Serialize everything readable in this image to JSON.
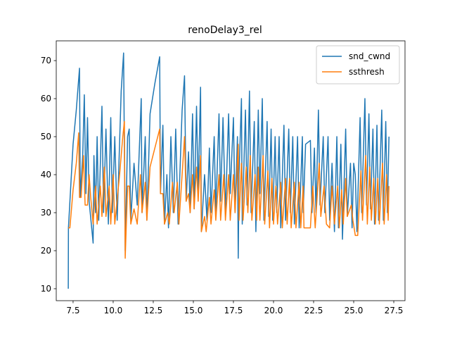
{
  "chart_data": {
    "type": "line",
    "title": "renoDelay3_rel",
    "xlim": [
      6.45,
      28.2
    ],
    "ylim": [
      6.85,
      75.2
    ],
    "xticks": [
      {
        "value": 7.5,
        "label": "7.5"
      },
      {
        "value": 10,
        "label": "10.0"
      },
      {
        "value": 12.5,
        "label": "12.5"
      },
      {
        "value": 15,
        "label": "15.0"
      },
      {
        "value": 17.5,
        "label": "17.5"
      },
      {
        "value": 20,
        "label": "20.0"
      },
      {
        "value": 22.5,
        "label": "22.5"
      },
      {
        "value": 25,
        "label": "25.0"
      },
      {
        "value": 27.5,
        "label": "27.5"
      }
    ],
    "yticks": [
      10,
      20,
      30,
      40,
      50,
      60,
      70
    ],
    "legend": "upper right",
    "series": [
      {
        "name": "snd_cwnd",
        "color": "#1f77b4",
        "x": [
          7.2,
          7.21,
          7.5,
          7.7,
          7.9,
          7.95,
          8.1,
          8.2,
          8.3,
          8.4,
          8.5,
          8.75,
          8.8,
          8.9,
          9.0,
          9.1,
          9.3,
          9.4,
          9.55,
          9.7,
          9.85,
          9.95,
          10.1,
          10.25,
          10.5,
          10.65,
          10.75,
          10.9,
          11.0,
          11.1,
          11.3,
          11.5,
          11.75,
          11.8,
          12.0,
          12.1,
          12.3,
          12.6,
          12.9,
          12.95,
          13.1,
          13.2,
          13.35,
          13.45,
          13.6,
          13.75,
          13.9,
          14.05,
          14.3,
          14.45,
          14.55,
          14.7,
          14.8,
          14.95,
          15.05,
          15.2,
          15.3,
          15.45,
          15.5,
          15.7,
          15.85,
          16.0,
          16.1,
          16.3,
          16.4,
          16.6,
          16.7,
          16.85,
          17.0,
          17.2,
          17.3,
          17.5,
          17.6,
          17.75,
          17.8,
          17.85,
          18.0,
          18.05,
          18.25,
          18.35,
          18.5,
          18.6,
          18.8,
          18.9,
          19.05,
          19.15,
          19.3,
          19.4,
          19.6,
          19.7,
          19.85,
          19.95,
          20.1,
          20.2,
          20.35,
          20.45,
          20.65,
          20.75,
          20.95,
          21.05,
          21.2,
          21.3,
          21.5,
          21.6,
          21.8,
          21.85,
          22.0,
          22.3,
          22.4,
          22.55,
          22.65,
          22.8,
          22.9,
          23.1,
          23.2,
          23.4,
          23.5,
          23.65,
          23.8,
          23.95,
          24.05,
          24.2,
          24.3,
          24.5,
          24.6,
          24.8,
          24.9,
          25.0,
          25.1,
          25.2,
          25.4,
          25.5,
          25.7,
          25.8,
          25.95,
          26.05,
          26.2,
          26.3,
          26.45,
          26.55,
          26.75,
          26.85,
          27.0,
          27.1,
          27.2
        ],
        "values": [
          10,
          26,
          48,
          57,
          68,
          34,
          45,
          61,
          35,
          55,
          33,
          22,
          45,
          30,
          50,
          28,
          58,
          30,
          52,
          27,
          55,
          30,
          50,
          28,
          62,
          72,
          20,
          50,
          52,
          28,
          43,
          32,
          60,
          30,
          50,
          28,
          56,
          64,
          71,
          35,
          53,
          27,
          40,
          26,
          50,
          30,
          52,
          27,
          57,
          66,
          33,
          46,
          30,
          56,
          31,
          58,
          35,
          63,
          25,
          40,
          28,
          47,
          30,
          50,
          30,
          56,
          33,
          55,
          30,
          56,
          35,
          55,
          30,
          50,
          18,
          40,
          60,
          27,
          57,
          32,
          62,
          30,
          54,
          25,
          57,
          35,
          60,
          28,
          54,
          29,
          52,
          28,
          50,
          30,
          50,
          26,
          53,
          28,
          52,
          30,
          50,
          27,
          50,
          26,
          50,
          30,
          48,
          49,
          30,
          47,
          30,
          57,
          32,
          50,
          30,
          50,
          28,
          43,
          25,
          50,
          26,
          48,
          23,
          52,
          29,
          43,
          26,
          43,
          40,
          25,
          55,
          30,
          60,
          32,
          56,
          31,
          52,
          27,
          53,
          28,
          57,
          28,
          54,
          30,
          50
        ]
      },
      {
        "name": "ssthresh",
        "color": "#ff7f0e",
        "x": [
          7.2,
          7.3,
          7.5,
          7.7,
          7.85,
          7.9,
          8.0,
          8.15,
          8.25,
          8.4,
          8.5,
          8.6,
          8.75,
          8.9,
          9.0,
          9.2,
          9.3,
          9.45,
          9.55,
          9.75,
          9.85,
          10.0,
          10.1,
          10.4,
          10.6,
          10.7,
          10.75,
          10.9,
          11.0,
          11.1,
          11.3,
          11.5,
          11.7,
          11.8,
          12.0,
          12.1,
          12.3,
          12.6,
          12.9,
          12.95,
          13.1,
          13.2,
          13.4,
          13.5,
          13.7,
          13.8,
          14.0,
          14.1,
          14.3,
          14.45,
          14.55,
          14.7,
          14.8,
          14.95,
          15.05,
          15.2,
          15.3,
          15.45,
          15.5,
          15.7,
          15.8,
          16.0,
          16.1,
          16.3,
          16.4,
          16.6,
          16.7,
          16.9,
          17.0,
          17.2,
          17.3,
          17.5,
          17.6,
          17.8,
          17.85,
          18.0,
          18.1,
          18.3,
          18.4,
          18.55,
          18.65,
          18.85,
          18.95,
          19.05,
          19.15,
          19.35,
          19.45,
          19.65,
          19.75,
          19.9,
          20.0,
          20.15,
          20.25,
          20.45,
          20.55,
          20.75,
          20.85,
          21.0,
          21.1,
          21.3,
          21.4,
          21.6,
          21.7,
          21.85,
          21.9,
          22.3,
          22.45,
          22.6,
          22.85,
          22.95,
          23.15,
          23.3,
          23.5,
          23.65,
          23.8,
          24.0,
          24.1,
          24.25,
          24.35,
          24.5,
          24.6,
          24.85,
          24.95,
          25.1,
          25.25,
          25.45,
          25.55,
          25.75,
          25.85,
          26.0,
          26.1,
          26.25,
          26.35,
          26.5,
          26.6,
          26.8,
          26.9,
          27.05,
          27.15,
          27.2
        ],
        "values": [
          26,
          26,
          36,
          43,
          51,
          34,
          34,
          45,
          32,
          32,
          40,
          34,
          27,
          37,
          27,
          37,
          29,
          42,
          29,
          37,
          27,
          40,
          27,
          40,
          50,
          54,
          18,
          37,
          37,
          27,
          31,
          27,
          40,
          30,
          38,
          28,
          42,
          47,
          52,
          35,
          35,
          27,
          30,
          27,
          38,
          30,
          38,
          27,
          40,
          50,
          33,
          35,
          30,
          40,
          31,
          42,
          33,
          45,
          25,
          29,
          25,
          34,
          27,
          36,
          28,
          40,
          28,
          40,
          28,
          40,
          28,
          40,
          30,
          48,
          28,
          43,
          28,
          42,
          30,
          45,
          28,
          40,
          28,
          42,
          28,
          45,
          27,
          41,
          26,
          39,
          27,
          37,
          27,
          38,
          26,
          39,
          27,
          39,
          26,
          38,
          26,
          38,
          26,
          37,
          26,
          26,
          37,
          26,
          43,
          29,
          37,
          27,
          26,
          37,
          27,
          37,
          26,
          36,
          27,
          39,
          29,
          32,
          28,
          24,
          24,
          41,
          28,
          45,
          27,
          42,
          28,
          39,
          27,
          39,
          27,
          43,
          27,
          40,
          28,
          37
        ]
      }
    ]
  }
}
